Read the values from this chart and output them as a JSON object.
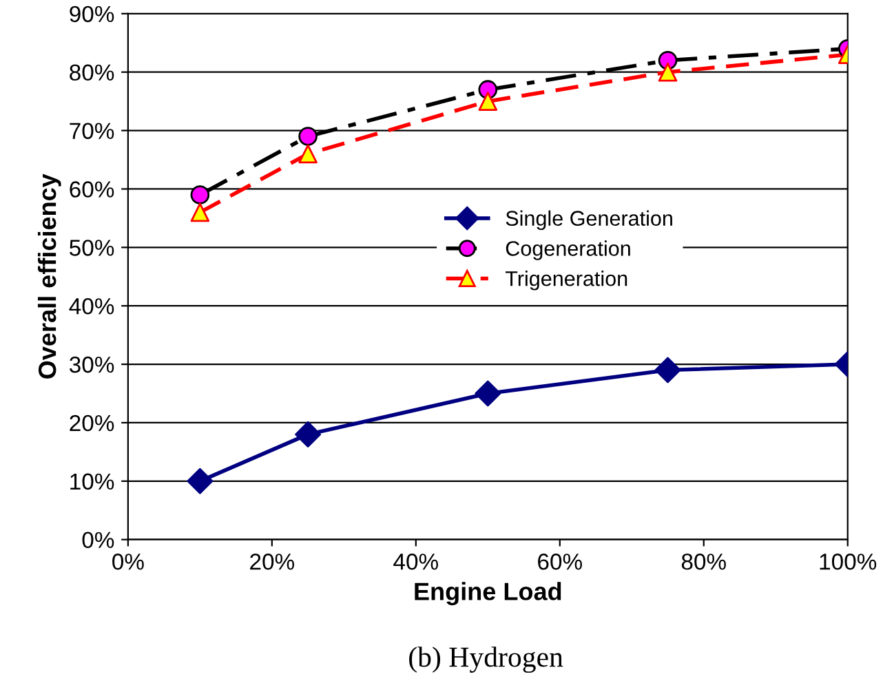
{
  "chart_data": {
    "type": "line",
    "xlabel": "Engine Load",
    "ylabel": "Overall efficiency",
    "x": [
      10,
      25,
      50,
      75,
      100
    ],
    "series": [
      {
        "name": "Single Generation",
        "color": "#000080",
        "colors": [
          "#000080",
          "#000080",
          "#000080",
          "#000080",
          "#000080"
        ],
        "marker": "diamond",
        "line_style": "solid",
        "values": [
          10,
          18,
          25,
          29,
          30
        ]
      },
      {
        "name": "Cogeneration",
        "color": "#000000",
        "colors": [
          "#ff00ff",
          "#ff00ff",
          "#ff00ff",
          "#ff00ff",
          "#ff00ff"
        ],
        "marker": "circle",
        "line_style": "dashdot",
        "values": [
          59,
          69,
          77,
          82,
          84
        ]
      },
      {
        "name": "Trigeneration",
        "color": "#ff0000",
        "colors": [
          "#ffff00",
          "#ffff00",
          "#ffff00",
          "#ffff00",
          "#ffff00"
        ],
        "marker": "triangle",
        "line_style": "dashed",
        "values": [
          56,
          66,
          75,
          80,
          83
        ]
      }
    ],
    "xlim": [
      0,
      100
    ],
    "ylim": [
      0,
      90
    ],
    "xticks": [
      {
        "value": 0,
        "label": "0%"
      },
      {
        "value": 20,
        "label": "20%"
      },
      {
        "value": 40,
        "label": "40%"
      },
      {
        "value": 60,
        "label": "60%"
      },
      {
        "value": 80,
        "label": "80%"
      },
      {
        "value": 100,
        "label": "100%"
      }
    ],
    "yticks": [
      {
        "value": 0,
        "label": "0%"
      },
      {
        "value": 10,
        "label": "10%"
      },
      {
        "value": 20,
        "label": "20%"
      },
      {
        "value": 30,
        "label": "30%"
      },
      {
        "value": 40,
        "label": "40%"
      },
      {
        "value": 50,
        "label": "50%"
      },
      {
        "value": 60,
        "label": "60%"
      },
      {
        "value": 70,
        "label": "70%"
      },
      {
        "value": 80,
        "label": "80%"
      },
      {
        "value": 90,
        "label": "90%"
      }
    ],
    "grid": "y",
    "legend": "center",
    "annotations": [
      "(b) Hydrogen"
    ]
  }
}
